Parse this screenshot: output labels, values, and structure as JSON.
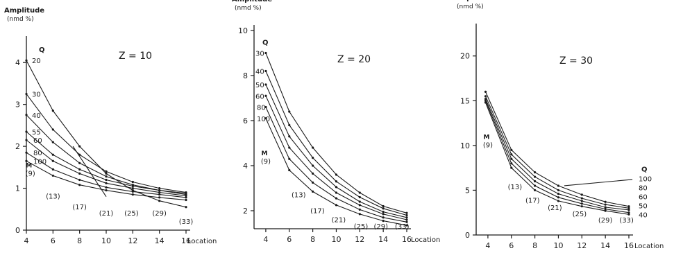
{
  "chart_data": [
    {
      "type": "line",
      "title": "Z = 10",
      "ylabel": "Amplitude",
      "yunit": "(nmd %)",
      "xlabel": "Location",
      "xlim": [
        4,
        16
      ],
      "ylim": [
        0,
        4.5
      ],
      "xticks": [
        4,
        6,
        8,
        10,
        12,
        14,
        16
      ],
      "yticks": [
        0,
        1,
        2,
        3,
        4
      ],
      "x": [
        4,
        6,
        8,
        10,
        12,
        14,
        16
      ],
      "legend_header": "Q",
      "marker_label": "M",
      "series": [
        {
          "name": "20",
          "values": [
            4.05,
            2.85,
            2.0,
            1.35,
            0.95,
            0.7,
            0.55
          ]
        },
        {
          "name": "30",
          "values": [
            3.25,
            2.4,
            1.8,
            1.4,
            1.15,
            1.0,
            0.9
          ]
        },
        {
          "name": "40",
          "values": [
            2.75,
            2.1,
            1.6,
            1.28,
            1.08,
            0.95,
            0.88
          ]
        },
        {
          "name": "55",
          "values": [
            2.35,
            1.8,
            1.45,
            1.2,
            1.05,
            0.95,
            0.85
          ]
        },
        {
          "name": "60",
          "values": [
            2.15,
            1.65,
            1.35,
            1.12,
            1.0,
            0.9,
            0.82
          ]
        },
        {
          "name": "80",
          "values": [
            1.85,
            1.45,
            1.2,
            1.02,
            0.92,
            0.85,
            0.78
          ]
        },
        {
          "name": "100",
          "values": [
            1.65,
            1.3,
            1.08,
            0.95,
            0.85,
            0.78,
            0.72
          ]
        }
      ],
      "extra_line": {
        "x": [
          7.5,
          10
        ],
        "y": [
          2.0,
          0.8
        ]
      },
      "location_labels": [
        {
          "text": "(9)",
          "x": 4.3,
          "y": 1.3
        },
        {
          "text": "(13)",
          "x": 6.0,
          "y": 0.75
        },
        {
          "text": "(17)",
          "x": 8.0,
          "y": 0.5
        },
        {
          "text": "(21)",
          "x": 10.0,
          "y": 0.35
        },
        {
          "text": "(25)",
          "x": 11.9,
          "y": 0.35
        },
        {
          "text": "(29)",
          "x": 14.0,
          "y": 0.35
        },
        {
          "text": "(33)",
          "x": 16.0,
          "y": 0.15
        }
      ]
    },
    {
      "type": "line",
      "title": "Z = 20",
      "ylabel": "Amplitude",
      "yunit": "(nmd %)",
      "xlabel": "Location",
      "xlim": [
        3,
        16
      ],
      "ylim": [
        1.2,
        10
      ],
      "xticks": [
        4,
        6,
        8,
        10,
        12,
        14,
        16
      ],
      "yticks": [
        2,
        4,
        6,
        8,
        10
      ],
      "x": [
        4,
        6,
        8,
        10,
        12,
        14,
        16
      ],
      "legend_header": "Q",
      "marker_label": "M",
      "series": [
        {
          "name": "30",
          "values": [
            9.0,
            6.4,
            4.8,
            3.6,
            2.8,
            2.2,
            1.9
          ]
        },
        {
          "name": "40",
          "values": [
            8.2,
            5.8,
            4.35,
            3.3,
            2.6,
            2.1,
            1.8
          ]
        },
        {
          "name": "50",
          "values": [
            7.6,
            5.3,
            4.0,
            3.05,
            2.4,
            1.95,
            1.7
          ]
        },
        {
          "name": "60",
          "values": [
            7.1,
            4.8,
            3.65,
            2.8,
            2.25,
            1.85,
            1.6
          ]
        },
        {
          "name": "80",
          "values": [
            6.6,
            4.3,
            3.25,
            2.55,
            2.05,
            1.7,
            1.5
          ]
        },
        {
          "name": "100",
          "values": [
            6.1,
            3.8,
            2.85,
            2.25,
            1.85,
            1.55,
            1.35
          ]
        }
      ],
      "location_labels": [
        {
          "text": "(9)",
          "x": 4.0,
          "y": 4.1
        },
        {
          "text": "(13)",
          "x": 6.8,
          "y": 2.6
        },
        {
          "text": "(17)",
          "x": 8.4,
          "y": 1.9
        },
        {
          "text": "(21)",
          "x": 10.2,
          "y": 1.5
        },
        {
          "text": "(25)",
          "x": 12.1,
          "y": 1.2
        },
        {
          "text": "(29)",
          "x": 13.8,
          "y": 1.2
        },
        {
          "text": "(33)",
          "x": 15.6,
          "y": 1.2
        }
      ]
    },
    {
      "type": "line",
      "title": "Z = 30",
      "ylabel": "Amplitude",
      "yunit": "(nmd %)",
      "xlabel": "Location",
      "xlim": [
        3,
        16
      ],
      "ylim": [
        0,
        23
      ],
      "xticks": [
        4,
        6,
        8,
        10,
        12,
        14,
        16
      ],
      "yticks": [
        0,
        5,
        10,
        15,
        20
      ],
      "x": [
        3.8,
        6,
        8,
        10,
        12,
        14,
        16
      ],
      "legend_header": "Q",
      "marker_label": "M",
      "series": [
        {
          "name": "40",
          "values": [
            16.0,
            9.5,
            7.0,
            5.5,
            4.5,
            3.7,
            3.2
          ]
        },
        {
          "name": "50",
          "values": [
            15.5,
            9.0,
            6.5,
            5.0,
            4.1,
            3.4,
            3.0
          ]
        },
        {
          "name": "60",
          "values": [
            15.2,
            8.5,
            6.0,
            4.6,
            3.8,
            3.1,
            2.8
          ]
        },
        {
          "name": "80",
          "values": [
            15.0,
            8.0,
            5.5,
            4.2,
            3.5,
            2.9,
            2.5
          ]
        },
        {
          "name": "100",
          "values": [
            14.8,
            7.5,
            5.0,
            3.8,
            3.2,
            2.7,
            2.3
          ]
        }
      ],
      "extra_line": {
        "x": [
          10.5,
          16.3
        ],
        "y": [
          5.5,
          6.2
        ]
      },
      "location_labels": [
        {
          "text": "(9)",
          "x": 4.0,
          "y": 9.8
        },
        {
          "text": "(13)",
          "x": 6.3,
          "y": 5.1
        },
        {
          "text": "(17)",
          "x": 7.8,
          "y": 3.6
        },
        {
          "text": "(21)",
          "x": 9.7,
          "y": 2.8
        },
        {
          "text": "(25)",
          "x": 11.8,
          "y": 2.1
        },
        {
          "text": "(29)",
          "x": 14.0,
          "y": 1.4
        },
        {
          "text": "(33)",
          "x": 15.8,
          "y": 1.4
        }
      ]
    }
  ]
}
